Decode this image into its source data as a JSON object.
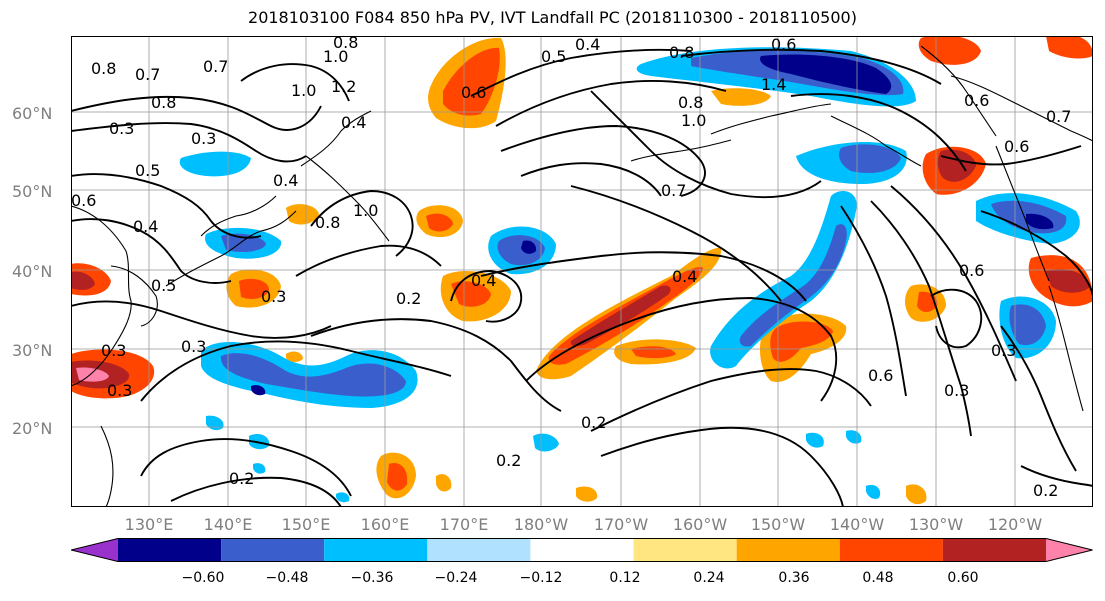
{
  "title": "2018103100 F084 850 hPa PV, IVT Landfall PC (2018110300 - 2018110500)",
  "lat_labels": [
    "60°N",
    "50°N",
    "40°N",
    "30°N",
    "20°N"
  ],
  "lon_labels": [
    "130°E",
    "140°E",
    "150°E",
    "160°E",
    "170°E",
    "180°W",
    "170°W",
    "160°W",
    "150°W",
    "140°W",
    "130°W",
    "120°W"
  ],
  "colorbar": {
    "ticks": [
      "−0.60",
      "−0.48",
      "−0.36",
      "−0.24",
      "−0.12",
      "0.12",
      "0.24",
      "0.36",
      "0.48",
      "0.60"
    ],
    "colors": [
      "#9932cc",
      "#00008b",
      "#3a5fcd",
      "#00bfff",
      "#b0e2ff",
      "#ffffff",
      "#ffe680",
      "#ffa500",
      "#ff4500",
      "#b22222",
      "#ff82ab"
    ]
  },
  "contour_labels": [
    "0.8",
    "1.0",
    "0.7",
    "0.8",
    "1.2",
    "1.0",
    "0.8",
    "0.7",
    "0.3",
    "0.5",
    "0.4",
    "0.6",
    "0.3",
    "0.8",
    "1.0",
    "0.4",
    "0.5",
    "0.3",
    "0.3",
    "0.4",
    "0.3",
    "0.5",
    "0.4",
    "0.8",
    "0.6",
    "0.4",
    "0.6",
    "0.7",
    "0.8",
    "1.4",
    "1.0",
    "0.6",
    "0.7",
    "0.6",
    "0.6",
    "0.2",
    "0.4",
    "0.2",
    "0.2",
    "0.6",
    "0.3",
    "0.3",
    "0.3",
    "0.2",
    "0.2"
  ],
  "colors": {
    "axis_label": "#7f7f7f",
    "contour": "#000000",
    "grid": "#999999"
  }
}
